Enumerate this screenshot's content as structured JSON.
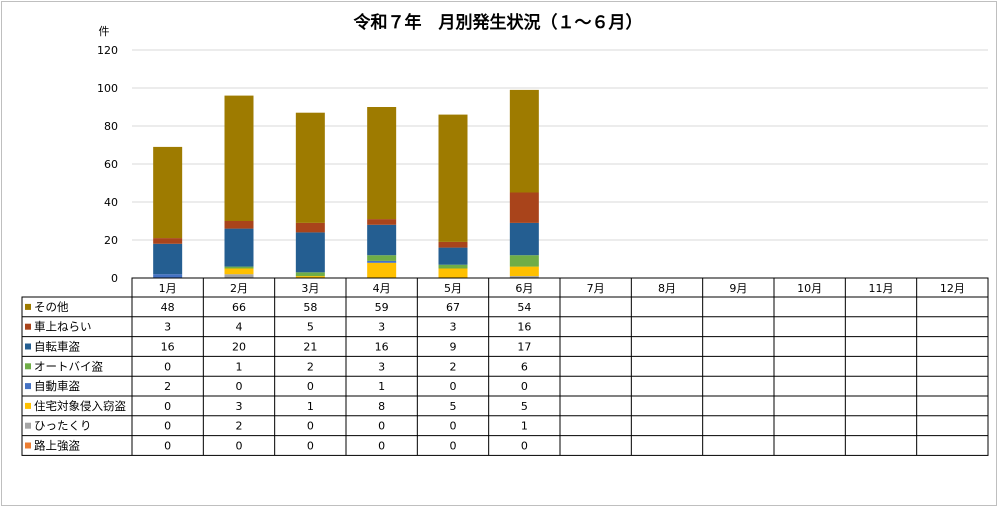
{
  "chart_data": {
    "type": "bar",
    "stacked": true,
    "title": "令和７年　月別発生状況（１～６月）",
    "ylabel": "件",
    "ylim": [
      0,
      120
    ],
    "yticks": [
      0,
      20,
      40,
      60,
      80,
      100,
      120
    ],
    "grid": true,
    "legend_placement": "data-table-left",
    "categories": [
      "1月",
      "2月",
      "3月",
      "4月",
      "5月",
      "6月",
      "7月",
      "8月",
      "9月",
      "10月",
      "11月",
      "12月"
    ],
    "series": [
      {
        "name": "その他",
        "color": "#9E7B00",
        "values": [
          48,
          66,
          58,
          59,
          67,
          54,
          null,
          null,
          null,
          null,
          null,
          null
        ]
      },
      {
        "name": "車上ねらい",
        "color": "#A9441B",
        "values": [
          3,
          4,
          5,
          3,
          3,
          16,
          null,
          null,
          null,
          null,
          null,
          null
        ]
      },
      {
        "name": "自転車盗",
        "color": "#245E91",
        "values": [
          16,
          20,
          21,
          16,
          9,
          17,
          null,
          null,
          null,
          null,
          null,
          null
        ]
      },
      {
        "name": "オートバイ盗",
        "color": "#6FAD47",
        "values": [
          0,
          1,
          2,
          3,
          2,
          6,
          null,
          null,
          null,
          null,
          null,
          null
        ]
      },
      {
        "name": "自動車盗",
        "color": "#4472C4",
        "values": [
          2,
          0,
          0,
          1,
          0,
          0,
          null,
          null,
          null,
          null,
          null,
          null
        ]
      },
      {
        "name": "住宅対象侵入窃盗",
        "color": "#FFC000",
        "values": [
          0,
          3,
          1,
          8,
          5,
          5,
          null,
          null,
          null,
          null,
          null,
          null
        ]
      },
      {
        "name": "ひったくり",
        "color": "#A5A5A5",
        "values": [
          0,
          2,
          0,
          0,
          0,
          1,
          null,
          null,
          null,
          null,
          null,
          null
        ]
      },
      {
        "name": "路上強盗",
        "color": "#ED7D31",
        "values": [
          0,
          0,
          0,
          0,
          0,
          0,
          null,
          null,
          null,
          null,
          null,
          null
        ]
      }
    ]
  }
}
